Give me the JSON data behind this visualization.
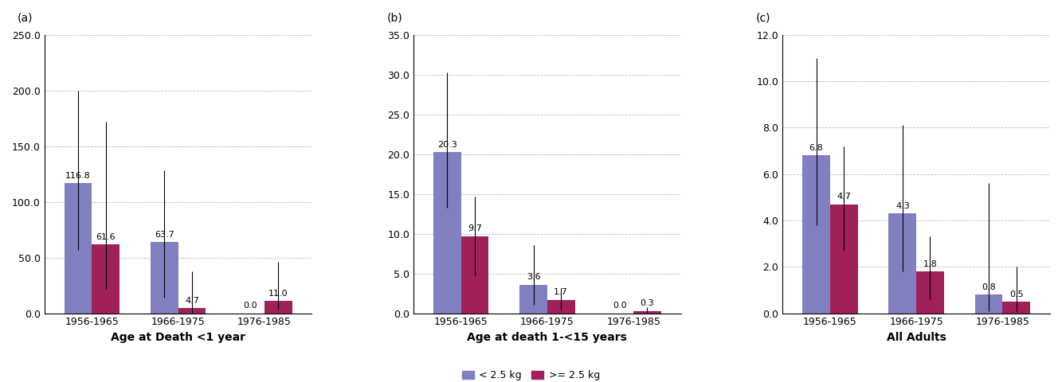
{
  "panels": [
    {
      "label": "(a)",
      "xlabel": "Age at Death <1 year",
      "ylim": [
        0,
        250
      ],
      "yticks": [
        0.0,
        50.0,
        100.0,
        150.0,
        200.0,
        250.0
      ],
      "categories": [
        "1956-1965",
        "1966-1975",
        "1976-1985"
      ],
      "blue_values": [
        116.8,
        63.7,
        0.0
      ],
      "red_values": [
        61.6,
        4.7,
        11.0
      ],
      "blue_err_upper": [
        83.0,
        65.0,
        0.0
      ],
      "blue_err_lower": [
        60.0,
        50.0,
        0.0
      ],
      "red_err_upper": [
        110.0,
        33.0,
        35.0
      ],
      "red_err_lower": [
        40.0,
        4.0,
        8.0
      ]
    },
    {
      "label": "(b)",
      "xlabel": "Age at death 1-<15 years",
      "ylim": [
        0,
        35
      ],
      "yticks": [
        0.0,
        5.0,
        10.0,
        15.0,
        20.0,
        25.0,
        30.0,
        35.0
      ],
      "categories": [
        "1956-1965",
        "1966-1975",
        "1976-1985"
      ],
      "blue_values": [
        20.3,
        3.6,
        0.0
      ],
      "red_values": [
        9.7,
        1.7,
        0.3
      ],
      "blue_err_upper": [
        10.0,
        5.0,
        0.0
      ],
      "blue_err_lower": [
        7.0,
        2.5,
        0.0
      ],
      "red_err_upper": [
        5.0,
        1.5,
        0.5
      ],
      "red_err_lower": [
        5.0,
        1.2,
        0.2
      ]
    },
    {
      "label": "(c)",
      "xlabel": "All Adults",
      "ylim": [
        0,
        12
      ],
      "yticks": [
        0.0,
        2.0,
        4.0,
        6.0,
        8.0,
        10.0,
        12.0
      ],
      "categories": [
        "1956-1965",
        "1966-1975",
        "1976-1985"
      ],
      "blue_values": [
        6.8,
        4.3,
        0.8
      ],
      "red_values": [
        4.7,
        1.8,
        0.5
      ],
      "blue_err_upper": [
        4.2,
        3.8,
        4.8
      ],
      "blue_err_lower": [
        3.0,
        2.5,
        0.7
      ],
      "red_err_upper": [
        2.5,
        1.5,
        1.5
      ],
      "red_err_lower": [
        2.0,
        1.2,
        0.4
      ]
    }
  ],
  "blue_color": "#8080C0",
  "red_color": "#A0205A",
  "bar_width": 0.32,
  "legend_blue_label": "< 2.5 kg",
  "legend_red_label": ">= 2.5 kg",
  "xlabel_fontsize": 10,
  "tick_fontsize": 9,
  "label_fontsize": 10,
  "value_fontsize": 8,
  "background_color": "#ffffff",
  "grid_color": "#bbbbbb",
  "legend_fontsize": 9
}
